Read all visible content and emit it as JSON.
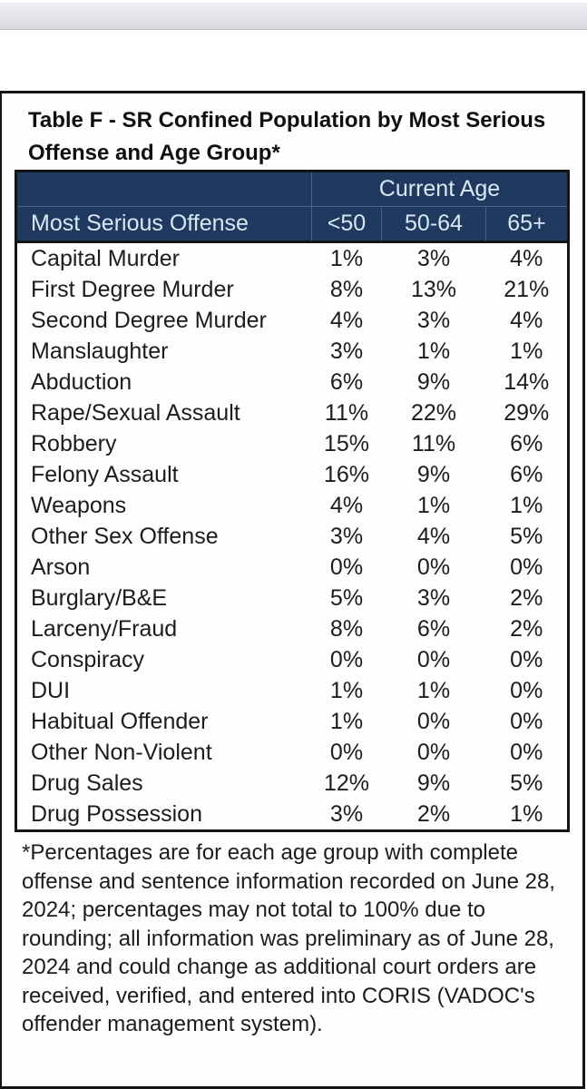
{
  "table": {
    "title_lines": [
      "Table F - SR Confined Population by Most Serious",
      "Offense and Age Group*"
    ],
    "title": "Table F - SR Confined Population by Most Serious Offense and Age Group*",
    "header": {
      "group_label": "Current Age",
      "col1": "Most Serious Offense",
      "age_cols": [
        "<50",
        "50-64",
        "65+"
      ]
    },
    "rows": [
      {
        "offense": "Capital Murder",
        "values": [
          "1%",
          "3%",
          "4%"
        ]
      },
      {
        "offense": "First Degree Murder",
        "values": [
          "8%",
          "13%",
          "21%"
        ]
      },
      {
        "offense": "Second Degree Murder",
        "values": [
          "4%",
          "3%",
          "4%"
        ]
      },
      {
        "offense": "Manslaughter",
        "values": [
          "3%",
          "1%",
          "1%"
        ]
      },
      {
        "offense": "Abduction",
        "values": [
          "6%",
          "9%",
          "14%"
        ]
      },
      {
        "offense": "Rape/Sexual Assault",
        "values": [
          "11%",
          "22%",
          "29%"
        ]
      },
      {
        "offense": "Robbery",
        "values": [
          "15%",
          "11%",
          "6%"
        ]
      },
      {
        "offense": "Felony Assault",
        "values": [
          "16%",
          "9%",
          "6%"
        ]
      },
      {
        "offense": "Weapons",
        "values": [
          "4%",
          "1%",
          "1%"
        ]
      },
      {
        "offense": "Other Sex Offense",
        "values": [
          "3%",
          "4%",
          "5%"
        ]
      },
      {
        "offense": "Arson",
        "values": [
          "0%",
          "0%",
          "0%"
        ]
      },
      {
        "offense": "Burglary/B&E",
        "values": [
          "5%",
          "3%",
          "2%"
        ]
      },
      {
        "offense": "Larceny/Fraud",
        "values": [
          "8%",
          "6%",
          "2%"
        ]
      },
      {
        "offense": "Conspiracy",
        "values": [
          "0%",
          "0%",
          "0%"
        ]
      },
      {
        "offense": "DUI",
        "values": [
          "1%",
          "1%",
          "0%"
        ]
      },
      {
        "offense": "Habitual Offender",
        "values": [
          "1%",
          "0%",
          "0%"
        ]
      },
      {
        "offense": "Other Non-Violent",
        "values": [
          "0%",
          "0%",
          "0%"
        ]
      },
      {
        "offense": "Drug Sales",
        "values": [
          "12%",
          "9%",
          "5%"
        ]
      },
      {
        "offense": "Drug Possession",
        "values": [
          "3%",
          "2%",
          "1%"
        ]
      }
    ]
  },
  "footnote": {
    "text": "*Percentages are for each age group with complete offense and sentence information recorded on June 28, 2024; percentages may not total to 100% due to rounding; all information was preliminary as of June 28, 2024 and could change as additional court orders are received, verified, and entered into CORIS (VADOC's offender management system).",
    "lines": [
      "*Percentages are for each age group with complete",
      "offense and sentence information recorded on June 28,",
      "2024; percentages may not total to 100% due to",
      "rounding; all information was preliminary as of June 28,",
      "2024 and could change as additional court orders are",
      "received, verified, and entered into CORIS (VADOC's",
      "offender management system)."
    ]
  },
  "colors": {
    "header_bg": "#1f3a5e",
    "header_text": "#d9e7f5",
    "border": "#151515",
    "top_band_start": "#f1eff4",
    "top_band_end": "#dad8dd"
  }
}
